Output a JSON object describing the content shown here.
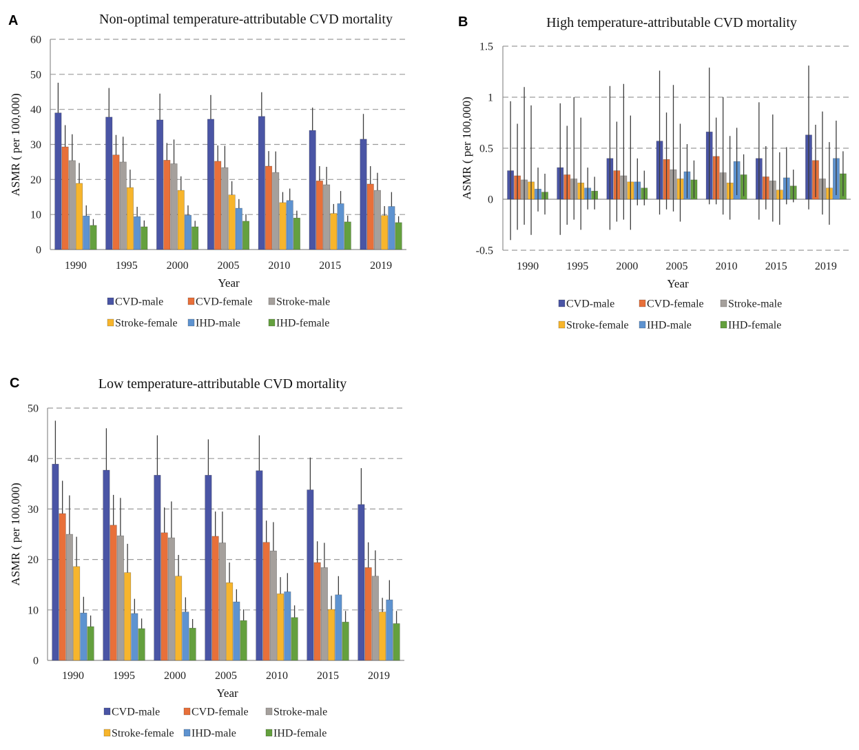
{
  "chart_data": [
    {
      "panel": "A",
      "type": "bar",
      "title": "Non-optimal temperature-attributable CVD mortality",
      "xlabel": "Year",
      "ylabel": "ASMR ( per 100,000)",
      "categories": [
        "1990",
        "1995",
        "2000",
        "2005",
        "2010",
        "2015",
        "2019"
      ],
      "ylim": [
        0,
        60
      ],
      "yticks": [
        0,
        10,
        20,
        30,
        40,
        50,
        60
      ],
      "ytick_labels": [
        "0",
        "10",
        "20",
        "30",
        "40",
        "50",
        "60"
      ],
      "grid": true,
      "legend": "bottom",
      "series": [
        {
          "name": "CVD-male",
          "color": "#4a55a5",
          "values": [
            39.0,
            37.8,
            37.0,
            37.2,
            38.0,
            34.0,
            31.5
          ],
          "upper": [
            47.6,
            46.1,
            44.5,
            44.1,
            44.9,
            40.5,
            38.7
          ]
        },
        {
          "name": "CVD-female",
          "color": "#e8703a",
          "values": [
            29.3,
            27.0,
            25.5,
            25.2,
            23.8,
            19.6,
            18.7
          ],
          "upper": [
            35.5,
            32.7,
            30.4,
            29.7,
            28.1,
            23.8,
            23.8
          ]
        },
        {
          "name": "Stroke-male",
          "color": "#a5a09c",
          "values": [
            25.4,
            25.0,
            24.5,
            23.4,
            22.0,
            18.5,
            16.9
          ],
          "upper": [
            32.9,
            32.2,
            31.4,
            29.6,
            28.0,
            23.6,
            21.9
          ]
        },
        {
          "name": "Stroke-female",
          "color": "#f7b52c",
          "values": [
            18.9,
            17.7,
            16.9,
            15.6,
            13.4,
            10.3,
            9.7
          ],
          "upper": [
            24.7,
            22.8,
            20.9,
            19.5,
            16.4,
            13.0,
            12.4
          ]
        },
        {
          "name": "IHD-male",
          "color": "#5e93d0",
          "values": [
            9.6,
            9.4,
            9.8,
            11.8,
            14.0,
            13.1,
            12.3
          ],
          "upper": [
            12.6,
            12.2,
            12.6,
            14.4,
            17.4,
            16.7,
            16.4
          ]
        },
        {
          "name": "IHD-female",
          "color": "#64a03e",
          "values": [
            6.9,
            6.5,
            6.5,
            8.1,
            9.0,
            7.9,
            7.7
          ],
          "upper": [
            8.7,
            8.3,
            8.2,
            10.1,
            11.1,
            9.7,
            9.5
          ]
        }
      ]
    },
    {
      "panel": "B",
      "type": "bar",
      "title": "High temperature-attributable CVD mortality",
      "xlabel": "Year",
      "ylabel": "ASMR ( per 100,000)",
      "categories": [
        "1990",
        "1995",
        "2000",
        "2005",
        "2010",
        "2015",
        "2019"
      ],
      "ylim": [
        -0.5,
        1.5
      ],
      "yticks": [
        -0.5,
        0,
        0.5,
        1,
        1.5
      ],
      "ytick_labels": [
        "-0.5",
        "0",
        "0.5",
        "1",
        "1.5"
      ],
      "grid": true,
      "legend": "bottom",
      "series": [
        {
          "name": "CVD-male",
          "color": "#4a55a5",
          "values": [
            0.28,
            0.31,
            0.4,
            0.57,
            0.66,
            0.4,
            0.63
          ],
          "upper": [
            0.96,
            0.94,
            1.11,
            1.26,
            1.29,
            0.95,
            1.31
          ],
          "lower": [
            -0.4,
            -0.35,
            -0.3,
            -0.15,
            -0.05,
            -0.2,
            -0.1
          ]
        },
        {
          "name": "CVD-female",
          "color": "#e8703a",
          "values": [
            0.23,
            0.24,
            0.28,
            0.39,
            0.42,
            0.22,
            0.38
          ],
          "upper": [
            0.74,
            0.72,
            0.76,
            0.85,
            0.8,
            0.52,
            0.73
          ],
          "lower": [
            -0.3,
            -0.25,
            -0.22,
            -0.1,
            -0.05,
            -0.1,
            0.02
          ]
        },
        {
          "name": "Stroke-male",
          "color": "#a5a09c",
          "values": [
            0.19,
            0.2,
            0.23,
            0.29,
            0.26,
            0.18,
            0.2
          ],
          "upper": [
            1.1,
            1.0,
            1.13,
            1.12,
            1.0,
            0.83,
            0.86
          ],
          "lower": [
            -0.25,
            -0.2,
            -0.2,
            -0.12,
            -0.15,
            -0.22,
            -0.15
          ]
        },
        {
          "name": "Stroke-female",
          "color": "#f7b52c",
          "values": [
            0.17,
            0.16,
            0.17,
            0.2,
            0.16,
            0.09,
            0.11
          ],
          "upper": [
            0.92,
            0.8,
            0.82,
            0.74,
            0.62,
            0.46,
            0.56
          ],
          "lower": [
            -0.35,
            -0.3,
            -0.3,
            -0.22,
            -0.2,
            -0.25,
            -0.25
          ]
        },
        {
          "name": "IHD-male",
          "color": "#5e93d0",
          "values": [
            0.1,
            0.11,
            0.17,
            0.27,
            0.37,
            0.21,
            0.4
          ],
          "upper": [
            0.31,
            0.31,
            0.4,
            0.54,
            0.7,
            0.51,
            0.77
          ],
          "lower": [
            -0.12,
            -0.1,
            -0.06,
            0.01,
            0.04,
            -0.05,
            0.04
          ]
        },
        {
          "name": "IHD-female",
          "color": "#64a03e",
          "values": [
            0.07,
            0.08,
            0.11,
            0.19,
            0.24,
            0.13,
            0.25
          ],
          "upper": [
            0.25,
            0.22,
            0.28,
            0.38,
            0.44,
            0.29,
            0.47
          ],
          "lower": [
            -0.15,
            -0.1,
            -0.06,
            0.01,
            0.03,
            -0.03,
            0.03
          ]
        }
      ]
    },
    {
      "panel": "C",
      "type": "bar",
      "title": "Low temperature-attributable CVD mortality",
      "xlabel": "Year",
      "ylabel": "ASMR ( per 100,000)",
      "categories": [
        "1990",
        "1995",
        "2000",
        "2005",
        "2010",
        "2015",
        "2019"
      ],
      "ylim": [
        0,
        50
      ],
      "yticks": [
        0,
        10,
        20,
        30,
        40,
        50
      ],
      "ytick_labels": [
        "0",
        "10",
        "20",
        "30",
        "40",
        "50"
      ],
      "grid": true,
      "legend": "bottom",
      "series": [
        {
          "name": "CVD-male",
          "color": "#4a55a5",
          "values": [
            38.9,
            37.7,
            36.7,
            36.7,
            37.6,
            33.8,
            30.9
          ],
          "upper": [
            47.5,
            46.0,
            44.6,
            43.8,
            44.6,
            40.2,
            38.1
          ]
        },
        {
          "name": "CVD-female",
          "color": "#e8703a",
          "values": [
            29.1,
            26.8,
            25.3,
            24.6,
            23.4,
            19.4,
            18.4
          ],
          "upper": [
            35.6,
            32.8,
            30.3,
            29.5,
            27.7,
            23.6,
            23.4
          ]
        },
        {
          "name": "Stroke-male",
          "color": "#a5a09c",
          "values": [
            25.0,
            24.7,
            24.3,
            23.3,
            21.7,
            18.4,
            16.7
          ],
          "upper": [
            32.7,
            32.2,
            31.5,
            29.5,
            27.4,
            23.3,
            21.8
          ]
        },
        {
          "name": "Stroke-female",
          "color": "#f7b52c",
          "values": [
            18.6,
            17.4,
            16.7,
            15.4,
            13.2,
            10.1,
            9.6
          ],
          "upper": [
            24.5,
            23.1,
            20.9,
            19.4,
            16.5,
            12.8,
            12.4
          ]
        },
        {
          "name": "IHD-male",
          "color": "#5e93d0",
          "values": [
            9.4,
            9.3,
            9.6,
            11.6,
            13.6,
            13.0,
            12.0
          ],
          "upper": [
            12.6,
            12.2,
            12.5,
            14.1,
            17.3,
            16.7,
            15.9
          ]
        },
        {
          "name": "IHD-female",
          "color": "#64a03e",
          "values": [
            6.7,
            6.3,
            6.4,
            7.9,
            8.5,
            7.6,
            7.3
          ],
          "upper": [
            8.9,
            8.3,
            8.2,
            10.1,
            10.9,
            9.8,
            9.8
          ]
        }
      ]
    }
  ]
}
